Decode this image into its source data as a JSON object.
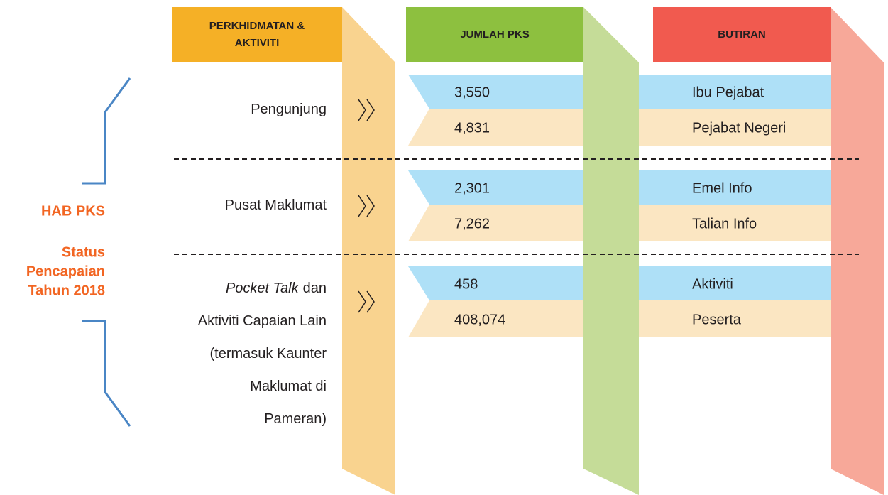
{
  "side": {
    "title": "HAB PKS",
    "subtitle_lines": [
      "Status",
      "Pencapaian",
      "Tahun 2018"
    ]
  },
  "headers": [
    {
      "lines": [
        "PERKHIDMATAN &",
        "AKTIVITI"
      ]
    },
    {
      "lines": [
        "JUMLAH PKS"
      ]
    },
    {
      "lines": [
        "BUTIRAN"
      ]
    }
  ],
  "rows": [
    {
      "activity_lines": [
        {
          "text": "Pengunjung"
        }
      ],
      "items": [
        {
          "count": "3,550",
          "detail": "Ibu Pejabat"
        },
        {
          "count": "4,831",
          "detail": "Pejabat Negeri"
        }
      ]
    },
    {
      "activity_lines": [
        {
          "text": "Pusat Maklumat"
        }
      ],
      "items": [
        {
          "count": "2,301",
          "detail": "Emel Info"
        },
        {
          "count": "7,262",
          "detail": "Talian Info"
        }
      ]
    },
    {
      "activity_lines": [
        {
          "italic": "Pocket Talk",
          "text": "dan"
        },
        {
          "text": "Aktiviti Capaian Lain"
        },
        {
          "text": "(termasuk Kaunter"
        },
        {
          "text": "Maklumat di"
        },
        {
          "text": "Pameran)"
        }
      ],
      "items": [
        {
          "count": "458",
          "detail": "Aktiviti"
        },
        {
          "count": "408,074",
          "detail": "Peserta"
        }
      ]
    }
  ]
}
